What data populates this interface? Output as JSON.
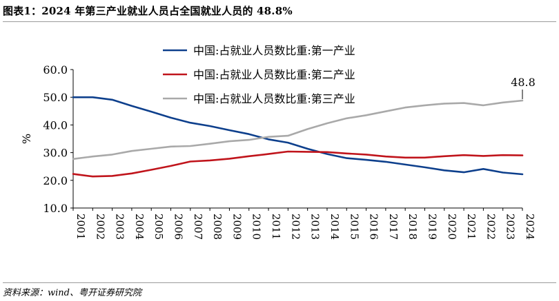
{
  "header": {
    "title": "图表1：2024 年第三产业就业人员占全国就业人员的 48.8%"
  },
  "footer": {
    "source": "资料来源：wind、粤开证券研究院"
  },
  "chart_data": {
    "type": "line",
    "title": "",
    "xlabel": "",
    "ylabel": "%",
    "ylim": [
      10,
      60
    ],
    "yticks": [
      "10.0",
      "20.0",
      "30.0",
      "40.0",
      "50.0",
      "60.0"
    ],
    "grid": false,
    "legend_position": "top",
    "x": [
      "2001",
      "2002",
      "2003",
      "2004",
      "2005",
      "2006",
      "2007",
      "2008",
      "2009",
      "2010",
      "2011",
      "2012",
      "2013",
      "2014",
      "2015",
      "2016",
      "2017",
      "2018",
      "2019",
      "2020",
      "2021",
      "2022",
      "2023",
      "2024"
    ],
    "series": [
      {
        "name": "中国:占就业人员数比重:第一产业",
        "color": "#0d3f8c",
        "values": [
          50.0,
          50.0,
          49.1,
          46.9,
          44.8,
          42.6,
          40.8,
          39.6,
          38.1,
          36.7,
          34.8,
          33.6,
          31.4,
          29.5,
          28.0,
          27.4,
          26.7,
          25.7,
          24.7,
          23.6,
          22.9,
          24.1,
          22.8,
          22.2
        ]
      },
      {
        "name": "中国:占就业人员数比重:第二产业",
        "color": "#c0141b",
        "values": [
          22.3,
          21.4,
          21.6,
          22.5,
          23.8,
          25.2,
          26.8,
          27.2,
          27.8,
          28.7,
          29.5,
          30.4,
          30.3,
          30.2,
          29.7,
          29.3,
          28.6,
          28.2,
          28.2,
          28.7,
          29.1,
          28.8,
          29.1,
          29.0
        ]
      },
      {
        "name": "中国:占就业人员数比重:第三产业",
        "color": "#a9a9a9",
        "values": [
          27.7,
          28.6,
          29.3,
          30.6,
          31.4,
          32.2,
          32.4,
          33.2,
          34.1,
          34.6,
          35.7,
          36.1,
          38.5,
          40.6,
          42.4,
          43.5,
          44.9,
          46.3,
          47.1,
          47.7,
          47.9,
          47.1,
          48.1,
          48.8
        ]
      }
    ],
    "annotations": [
      {
        "text": "48.8",
        "series": "中国:占就业人员数比重:第三产业",
        "x": "2024",
        "y": 48.8
      }
    ]
  }
}
